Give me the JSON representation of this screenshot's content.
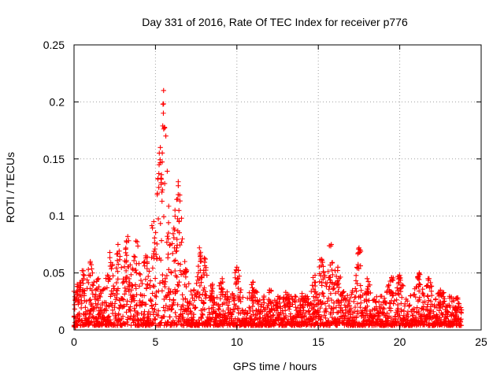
{
  "chart_data": {
    "type": "scatter",
    "title": "Day 331 of 2016, Rate Of TEC Index for receiver p776",
    "xlabel": "GPS time / hours",
    "ylabel": "ROTI / TECUs",
    "xlim": [
      0,
      25
    ],
    "ylim": [
      0,
      0.25
    ],
    "xticks": [
      0,
      5,
      10,
      15,
      20,
      25
    ],
    "yticks": [
      0,
      0.05,
      0.1,
      0.15,
      0.2,
      0.25
    ],
    "grid": true,
    "marker": "plus",
    "color": "#ff0000",
    "x_data_range": [
      0,
      23.8
    ],
    "features": [
      {
        "x": 0.0,
        "y": 0.004
      },
      {
        "x": 0.2,
        "y": 0.04
      },
      {
        "x": 0.5,
        "y": 0.052
      },
      {
        "x": 1.0,
        "y": 0.06
      },
      {
        "x": 1.5,
        "y": 0.045
      },
      {
        "x": 2.2,
        "y": 0.068
      },
      {
        "x": 2.7,
        "y": 0.075
      },
      {
        "x": 3.3,
        "y": 0.082
      },
      {
        "x": 3.8,
        "y": 0.078
      },
      {
        "x": 4.4,
        "y": 0.065
      },
      {
        "x": 4.9,
        "y": 0.095
      },
      {
        "x": 5.3,
        "y": 0.16
      },
      {
        "x": 5.5,
        "y": 0.21
      },
      {
        "x": 5.8,
        "y": 0.085
      },
      {
        "x": 6.2,
        "y": 0.105
      },
      {
        "x": 6.4,
        "y": 0.13
      },
      {
        "x": 6.8,
        "y": 0.06
      },
      {
        "x": 7.7,
        "y": 0.072
      },
      {
        "x": 8.0,
        "y": 0.063
      },
      {
        "x": 8.5,
        "y": 0.04
      },
      {
        "x": 9.1,
        "y": 0.045
      },
      {
        "x": 10.0,
        "y": 0.055
      },
      {
        "x": 11.0,
        "y": 0.042
      },
      {
        "x": 12.0,
        "y": 0.035
      },
      {
        "x": 13.0,
        "y": 0.033
      },
      {
        "x": 14.0,
        "y": 0.032
      },
      {
        "x": 14.8,
        "y": 0.048
      },
      {
        "x": 15.2,
        "y": 0.062
      },
      {
        "x": 15.8,
        "y": 0.075
      },
      {
        "x": 16.2,
        "y": 0.055
      },
      {
        "x": 17.5,
        "y": 0.072
      },
      {
        "x": 18.0,
        "y": 0.045
      },
      {
        "x": 19.5,
        "y": 0.046
      },
      {
        "x": 20.0,
        "y": 0.048
      },
      {
        "x": 21.2,
        "y": 0.05
      },
      {
        "x": 21.8,
        "y": 0.045
      },
      {
        "x": 22.5,
        "y": 0.035
      },
      {
        "x": 23.5,
        "y": 0.028
      }
    ]
  }
}
